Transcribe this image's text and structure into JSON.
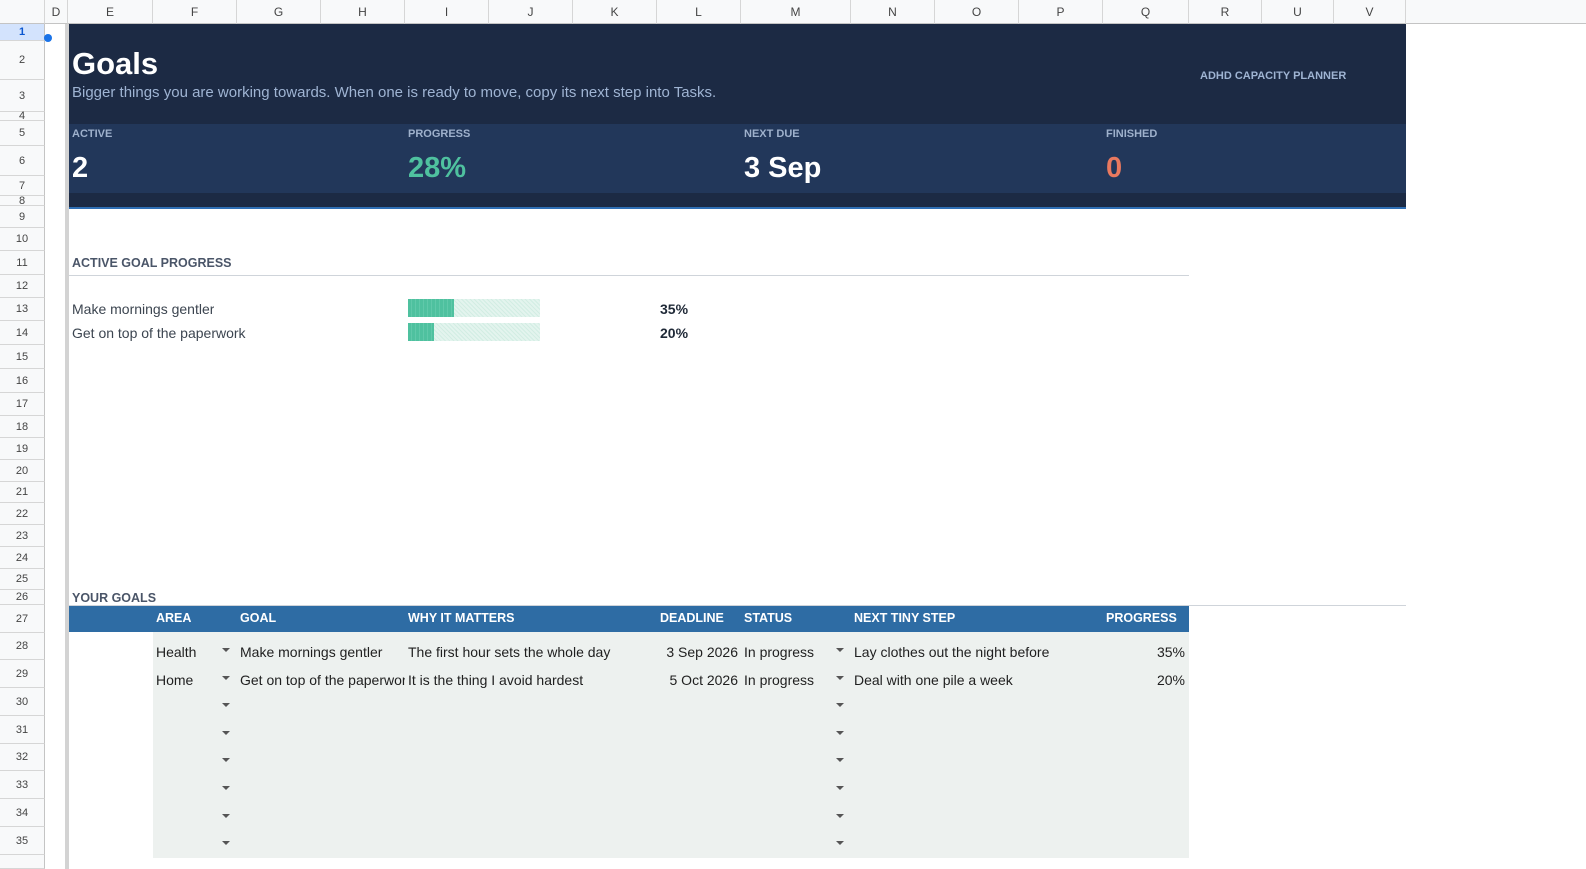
{
  "sheet": {
    "columns": [
      "D",
      "E",
      "F",
      "G",
      "H",
      "I",
      "J",
      "K",
      "L",
      "M",
      "N",
      "O",
      "P",
      "Q",
      "R",
      "U",
      "V"
    ],
    "rows": [
      1,
      2,
      3,
      4,
      5,
      6,
      7,
      8,
      9,
      10,
      11,
      12,
      13,
      14,
      15,
      16,
      17,
      18,
      19,
      20,
      21,
      22,
      23,
      24,
      25,
      26,
      27,
      28,
      29,
      30,
      31,
      32,
      33,
      34,
      35
    ]
  },
  "header": {
    "title": "Goals",
    "subtitle": "Bigger things you are working towards. When one is ready to move, copy its next step into Tasks.",
    "brand": "ADHD CAPACITY PLANNER"
  },
  "stats": [
    {
      "label": "ACTIVE",
      "value": "2"
    },
    {
      "label": "PROGRESS",
      "value": "28%"
    },
    {
      "label": "NEXT DUE",
      "value": "3 Sep"
    },
    {
      "label": "FINISHED",
      "value": "0"
    }
  ],
  "progress": {
    "title": "ACTIVE GOAL PROGRESS",
    "items": [
      {
        "goal": "Make mornings gentler",
        "value": 35,
        "label": "35%"
      },
      {
        "goal": "Get on top of the paperwork",
        "value": 20,
        "label": "20%"
      }
    ]
  },
  "goals_table": {
    "title": "YOUR GOALS",
    "columns": [
      "AREA",
      "GOAL",
      "WHY IT MATTERS",
      "DEADLINE",
      "STATUS",
      "NEXT TINY STEP",
      "PROGRESS"
    ],
    "rows": [
      [
        "Health",
        "Make mornings gentler",
        "The first hour sets the whole day",
        "3 Sep 2026",
        "In progress",
        "Lay clothes out the night before",
        "35%"
      ],
      [
        "Home",
        "Get on top of the paperwork",
        "It is the thing I avoid hardest",
        "5 Oct 2026",
        "In progress",
        "Deal with one pile a week",
        "20%"
      ]
    ]
  }
}
